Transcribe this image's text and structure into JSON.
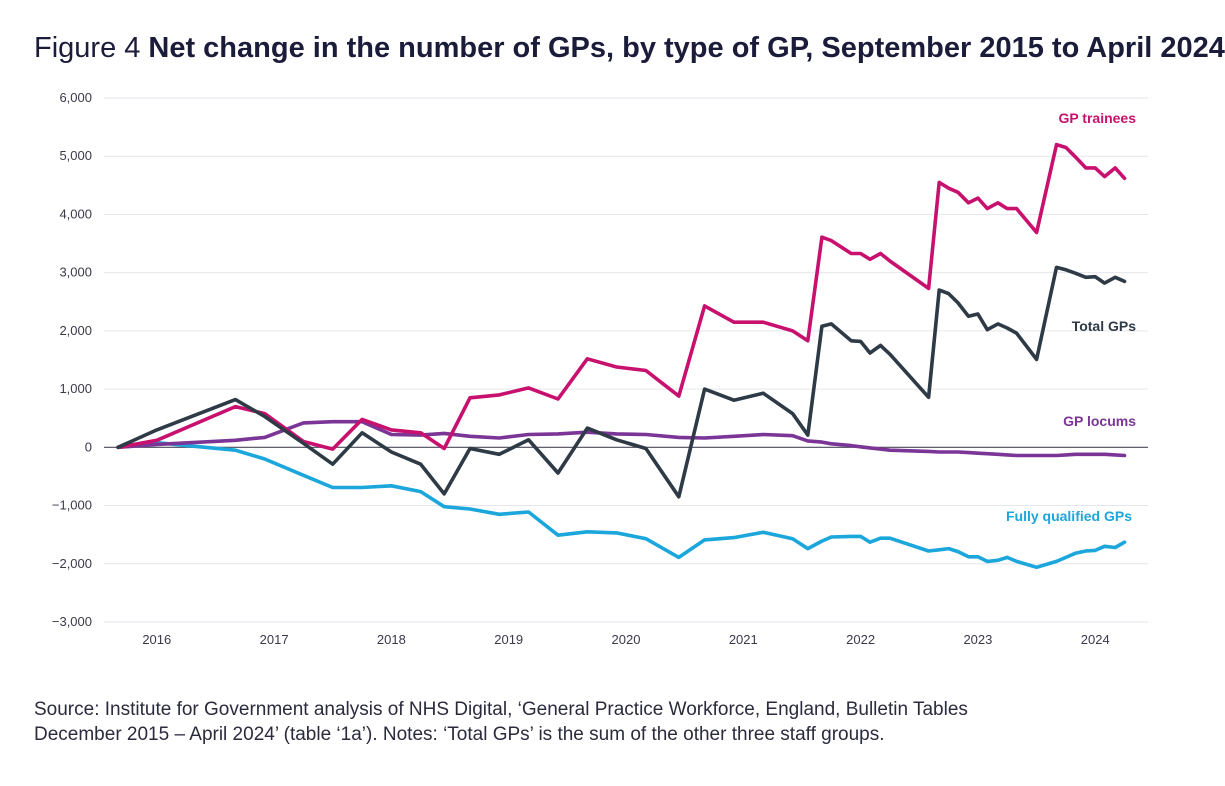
{
  "header": {
    "figure_label": "Figure 4",
    "title": "Net change in the number of GPs, by type of GP, September 2015 to April 2024"
  },
  "footer": {
    "source_line1": "Source: Institute for Government analysis of NHS Digital, ‘General Practice Workforce, England, Bulletin Tables",
    "source_line2": "December 2015 – April 2024’ (table ‘1a’). Notes: ‘Total GPs’ is the sum of the other three staff groups."
  },
  "chart_data": {
    "type": "line",
    "title": "Net change in the number of GPs, by type of GP, September 2015 to April 2024",
    "xlabel": "",
    "ylabel": "",
    "xlim": [
      2015.55,
      2024.45
    ],
    "ylim": [
      -3000,
      6000
    ],
    "yticks": [
      6000,
      5000,
      4000,
      3000,
      2000,
      1000,
      0,
      -1000,
      -2000,
      -3000
    ],
    "ytick_labels": [
      "6,000",
      "5,000",
      "4,000",
      "3,000",
      "2,000",
      "1,000",
      "0",
      "−1,000",
      "−2,000",
      "−3,000"
    ],
    "xticks": [
      2016,
      2017,
      2018,
      2019,
      2020,
      2021,
      2022,
      2023,
      2024
    ],
    "xtick_labels": [
      "2016",
      "2017",
      "2018",
      "2019",
      "2020",
      "2021",
      "2022",
      "2023",
      "2024"
    ],
    "grid": true,
    "series": [
      {
        "name": "GP trainees",
        "color": "#c8116e",
        "x": [
          2015.67,
          2016.0,
          2016.67,
          2016.92,
          2017.25,
          2017.5,
          2017.75,
          2018.0,
          2018.25,
          2018.45,
          2018.67,
          2018.92,
          2019.17,
          2019.42,
          2019.67,
          2019.92,
          2020.17,
          2020.45,
          2020.67,
          2020.92,
          2021.17,
          2021.42,
          2021.55,
          2021.67,
          2021.75,
          2021.92,
          2022.0,
          2022.08,
          2022.17,
          2022.25,
          2022.58,
          2022.67,
          2022.75,
          2022.83,
          2022.92,
          2023.0,
          2023.08,
          2023.17,
          2023.25,
          2023.33,
          2023.5,
          2023.67,
          2023.75,
          2023.83,
          2023.92,
          2024.0,
          2024.08,
          2024.17,
          2024.25
        ],
        "values": [
          0,
          120,
          700,
          580,
          100,
          -30,
          480,
          300,
          250,
          -20,
          850,
          900,
          1020,
          830,
          1520,
          1380,
          1320,
          880,
          2430,
          2150,
          2150,
          2000,
          1830,
          3610,
          3550,
          3330,
          3330,
          3230,
          3330,
          3200,
          2730,
          4550,
          4450,
          4380,
          4200,
          4280,
          4100,
          4200,
          4100,
          4100,
          3690,
          5200,
          5150,
          4990,
          4800,
          4800,
          4650,
          4800,
          4620
        ]
      },
      {
        "name": "Total GPs",
        "color": "#2e3a46",
        "x": [
          2015.67,
          2016.0,
          2016.67,
          2016.92,
          2017.25,
          2017.5,
          2017.75,
          2018.0,
          2018.25,
          2018.45,
          2018.67,
          2018.92,
          2019.17,
          2019.42,
          2019.67,
          2019.92,
          2020.17,
          2020.45,
          2020.67,
          2020.92,
          2021.17,
          2021.42,
          2021.55,
          2021.67,
          2021.75,
          2021.92,
          2022.0,
          2022.08,
          2022.17,
          2022.25,
          2022.58,
          2022.67,
          2022.75,
          2022.83,
          2022.92,
          2023.0,
          2023.08,
          2023.17,
          2023.25,
          2023.33,
          2023.5,
          2023.67,
          2023.75,
          2023.83,
          2023.92,
          2024.0,
          2024.08,
          2024.17,
          2024.25
        ],
        "values": [
          0,
          300,
          820,
          530,
          70,
          -290,
          250,
          -80,
          -290,
          -800,
          -20,
          -120,
          130,
          -440,
          330,
          130,
          -20,
          -850,
          1000,
          810,
          930,
          580,
          210,
          2080,
          2120,
          1830,
          1820,
          1620,
          1750,
          1600,
          860,
          2700,
          2640,
          2480,
          2250,
          2290,
          2020,
          2120,
          2050,
          1960,
          1510,
          3090,
          3050,
          2990,
          2920,
          2930,
          2820,
          2920,
          2850
        ]
      },
      {
        "name": "GP locums",
        "color": "#7b3596",
        "x": [
          2015.67,
          2016.0,
          2016.67,
          2016.92,
          2017.25,
          2017.5,
          2017.75,
          2018.0,
          2018.25,
          2018.45,
          2018.67,
          2018.92,
          2019.17,
          2019.42,
          2019.67,
          2019.92,
          2020.17,
          2020.45,
          2020.67,
          2020.92,
          2021.17,
          2021.42,
          2021.55,
          2021.67,
          2021.75,
          2021.92,
          2022.0,
          2022.08,
          2022.17,
          2022.25,
          2022.58,
          2022.67,
          2022.75,
          2022.83,
          2022.92,
          2023.0,
          2023.08,
          2023.17,
          2023.25,
          2023.33,
          2023.5,
          2023.67,
          2023.75,
          2023.83,
          2023.92,
          2024.0,
          2024.08,
          2024.17,
          2024.25
        ],
        "values": [
          0,
          50,
          120,
          170,
          420,
          440,
          440,
          220,
          210,
          240,
          190,
          160,
          220,
          230,
          260,
          230,
          220,
          170,
          160,
          190,
          220,
          200,
          110,
          90,
          60,
          30,
          10,
          -10,
          -30,
          -50,
          -70,
          -80,
          -80,
          -80,
          -90,
          -100,
          -110,
          -120,
          -130,
          -140,
          -140,
          -140,
          -130,
          -120,
          -120,
          -120,
          -120,
          -130,
          -140
        ]
      },
      {
        "name": "Fully qualified GPs",
        "color": "#1ba6dc",
        "x": [
          2015.67,
          2016.0,
          2016.67,
          2016.92,
          2017.25,
          2017.5,
          2017.75,
          2018.0,
          2018.25,
          2018.45,
          2018.67,
          2018.92,
          2019.17,
          2019.42,
          2019.67,
          2019.92,
          2020.17,
          2020.45,
          2020.67,
          2020.92,
          2021.17,
          2021.42,
          2021.55,
          2021.67,
          2021.75,
          2021.92,
          2022.0,
          2022.08,
          2022.17,
          2022.25,
          2022.58,
          2022.67,
          2022.75,
          2022.83,
          2022.92,
          2023.0,
          2023.08,
          2023.17,
          2023.25,
          2023.33,
          2023.5,
          2023.67,
          2023.75,
          2023.83,
          2023.92,
          2024.0,
          2024.08,
          2024.17,
          2024.25
        ],
        "values": [
          0,
          80,
          -50,
          -200,
          -480,
          -690,
          -690,
          -660,
          -760,
          -1020,
          -1060,
          -1150,
          -1110,
          -1510,
          -1450,
          -1470,
          -1570,
          -1890,
          -1590,
          -1550,
          -1460,
          -1570,
          -1740,
          -1610,
          -1540,
          -1530,
          -1530,
          -1630,
          -1560,
          -1560,
          -1780,
          -1760,
          -1740,
          -1790,
          -1880,
          -1880,
          -1960,
          -1940,
          -1890,
          -1960,
          -2060,
          -1960,
          -1890,
          -1820,
          -1780,
          -1770,
          -1700,
          -1720,
          -1630
        ]
      }
    ],
    "annotations": [
      {
        "text": "GP trainees",
        "series": "GP trainees"
      },
      {
        "text": "Total GPs",
        "series": "Total GPs"
      },
      {
        "text": "GP locums",
        "series": "GP locums"
      },
      {
        "text": "Fully qualified GPs",
        "series": "Fully qualified GPs"
      }
    ]
  }
}
